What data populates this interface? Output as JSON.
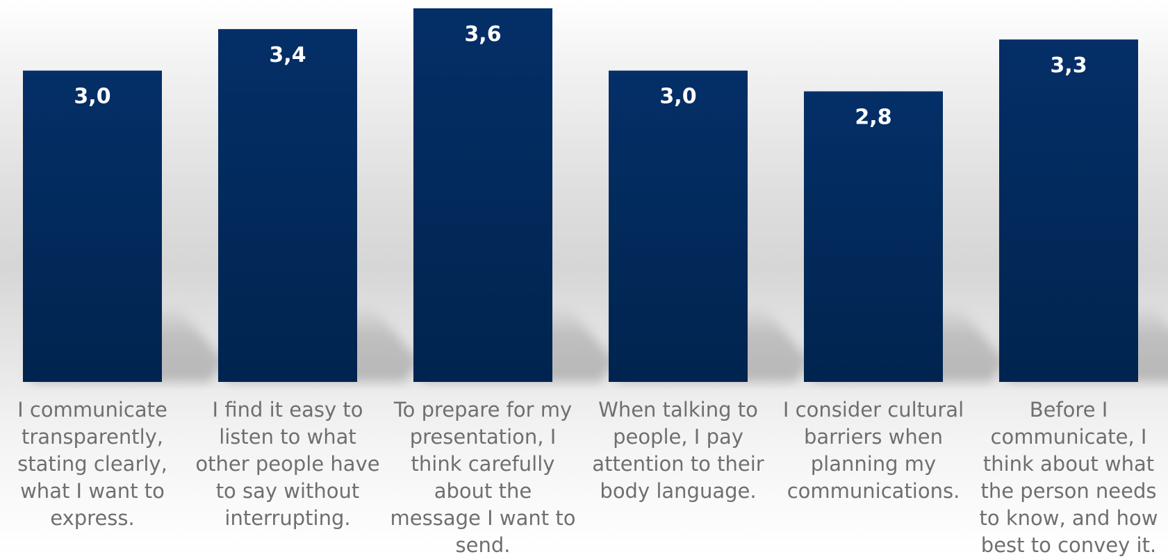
{
  "chart_data": {
    "type": "bar",
    "categories": [
      "I communicate transparently, stating clearly, what I want to express.",
      "I find it easy to listen to what other people have to say without interrupting.",
      "To prepare for my presentation, I think carefully about the message I want to send.",
      "When talking to people, I pay attention to their body language.",
      "I consider cultural barriers when planning my communications.",
      "Before I communicate, I think about what the person needs to know, and how best to convey it."
    ],
    "values": [
      3.0,
      3.4,
      3.6,
      3.0,
      2.8,
      3.3
    ],
    "data_labels": [
      "3,0",
      "3,4",
      "3,6",
      "3,0",
      "2,8",
      "3,3"
    ],
    "ylim": [
      0,
      3.6
    ],
    "bar_color": "#002c60",
    "bar_color_top": "#032f66",
    "value_label_color": "#ffffff",
    "category_label_color": "#6f6f6f",
    "grid": false,
    "legend": "none"
  }
}
